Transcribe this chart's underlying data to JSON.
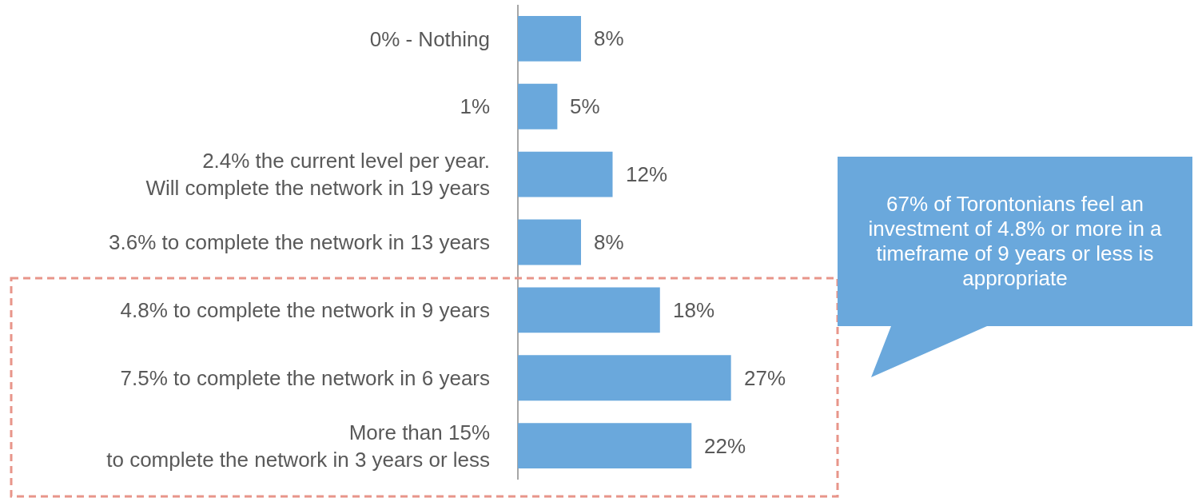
{
  "chart_data": {
    "type": "bar",
    "orientation": "horizontal",
    "categories": [
      "0% - Nothing",
      "1%",
      "2.4% the current level per year.\nWill complete the network in 19 years",
      "3.6% to complete the network in 13 years",
      "4.8% to complete the network in 9 years",
      "7.5% to complete the network in 6 years",
      "More than 15%\nto complete the network in 3 years or less"
    ],
    "values": [
      8,
      5,
      12,
      8,
      18,
      27,
      22
    ],
    "value_labels": [
      "8%",
      "5%",
      "12%",
      "8%",
      "18%",
      "27%",
      "22%"
    ],
    "color": "#6aa8dc",
    "grid": false,
    "annotations": [
      "67% of Torontonians feel an investment of 4.8% or more in a timeframe of 9 years or less is appropriate"
    ]
  }
}
